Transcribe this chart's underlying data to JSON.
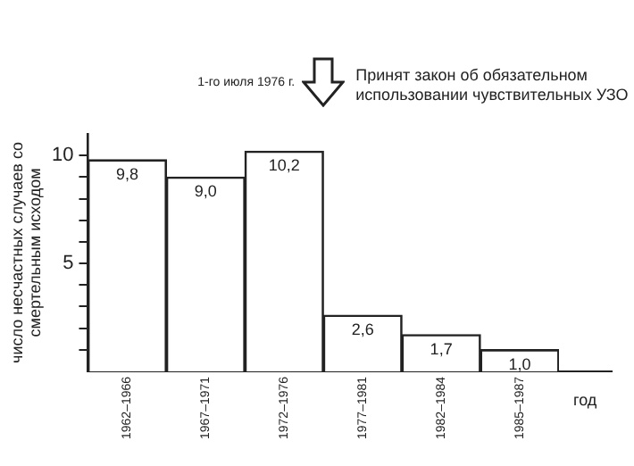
{
  "chart_data": {
    "type": "bar",
    "categories": [
      "1962–1966",
      "1967–1971",
      "1972–1976",
      "1977–1981",
      "1982–1984",
      "1985–1987"
    ],
    "values": [
      9.8,
      9.0,
      10.2,
      2.6,
      1.7,
      1.0
    ],
    "value_labels": [
      "9,8",
      "9,0",
      "10,2",
      "2,6",
      "1,7",
      "1,0"
    ],
    "color": "#ffffff",
    "ylim": [
      0,
      11
    ],
    "yticks": [
      {
        "value": 1,
        "label": null
      },
      {
        "value": 2,
        "label": null
      },
      {
        "value": 3,
        "label": null
      },
      {
        "value": 4,
        "label": null
      },
      5,
      {
        "value": 6,
        "label": null
      },
      {
        "value": 7,
        "label": null
      },
      {
        "value": 8,
        "label": null
      },
      {
        "value": 9,
        "label": null
      },
      10
    ],
    "xlabel": "год",
    "ylabel": "число несчастных случаев со смертельным исходом",
    "grid": false,
    "legend": false,
    "annotations": [
      "1-го июля 1976 г.",
      "Принят закон об обязательном использовании чувствительных УЗО"
    ]
  }
}
